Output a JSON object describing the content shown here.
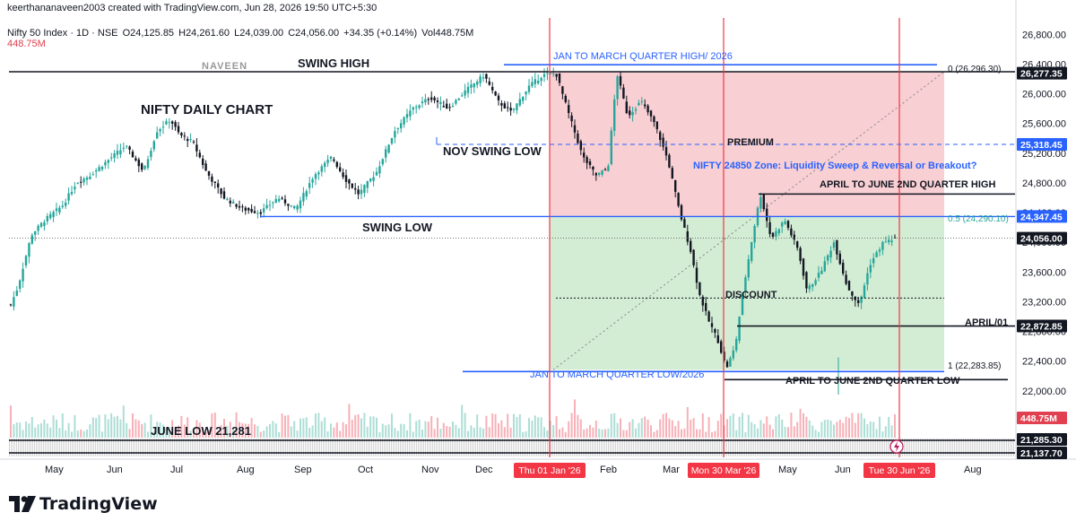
{
  "header": {
    "attribution": "keerthananaveen2003 created with TradingView.com, Jun 28, 2026 19:50 UTC+5:30",
    "symbol": "Nifty 50 Index · 1D · NSE",
    "open": "O24,125.85",
    "high": "H24,261.60",
    "low": "L24,039.00",
    "close": "C24,056.00",
    "change": "+34.35 (+0.14%)",
    "volume": "Vol448.75M",
    "volume_sub": "448.75M"
  },
  "brand": {
    "name": "TradingView"
  },
  "colors": {
    "up": "#26a69a",
    "down": "#131722",
    "premium_zone": "#f8cfd3",
    "discount_zone": "#d3ecd4",
    "blue_line": "#2962ff",
    "red_line": "#f23645",
    "label_blue": "#2962ff"
  },
  "chart_data": {
    "type": "candlestick",
    "title": "NIFTY DAILY CHART",
    "x_ticks": [
      "May",
      "Jun",
      "Jul",
      "Aug",
      "Sep",
      "Oct",
      "Nov",
      "Dec",
      "Feb",
      "Mar",
      "May",
      "Jun",
      "Aug"
    ],
    "x_date_badges": [
      "Thu 01 Jan '26",
      "Mon 30 Mar '26",
      "Tue 30 Jun '26"
    ],
    "y_ticks": [
      "26,800.00",
      "26,400.00",
      "26,000.00",
      "25,600.00",
      "25,200.00",
      "24,800.00",
      "24,400.00",
      "24,000.00",
      "23,600.00",
      "23,200.00",
      "22,800.00",
      "22,400.00",
      "22,000.00"
    ],
    "y_ticks_values": [
      26800,
      26400,
      26000,
      25600,
      25200,
      24800,
      24400,
      24000,
      23600,
      23200,
      22800,
      22400,
      22000
    ],
    "ylim": [
      21950,
      26900
    ],
    "price_badges": [
      {
        "label": "26,277.35",
        "value": 26277.35,
        "color": "#131722"
      },
      {
        "label": "25,318.45",
        "value": 25318.45,
        "color": "#2962ff"
      },
      {
        "label": "24,347.45",
        "value": 24347.45,
        "color": "#2962ff"
      },
      {
        "label": "24,056.00",
        "value": 24056.0,
        "color": "#131722"
      },
      {
        "label": "22,872.85",
        "value": 22872.85,
        "color": "#131722"
      },
      {
        "label": "448.75M",
        "value": 0,
        "color": "#e04050"
      },
      {
        "label": "21,285.30",
        "value": 0,
        "color": "#131722"
      },
      {
        "label": "21,137.70",
        "value": 0,
        "color": "#131722"
      }
    ],
    "key_levels": {
      "swing_high": 26296.3,
      "jan_mar_high": 26330,
      "nov_swing_low": 25318.45,
      "swing_low": 24347.45,
      "last_close": 24056.0,
      "april_01": 22872.85,
      "jan_mar_low": 22283.85,
      "apr_jun_high": 24650,
      "apr_jun_low": 22260,
      "discount_line": 23250
    },
    "fib": {
      "level_0": "0 (26,296.30)",
      "level_05": "0.5 (24,290.10)",
      "level_1": "1 (22,283.85)"
    },
    "annotations": {
      "naveen": "NAVEEN",
      "swing_high": "SWING HIGH",
      "nifty_daily": "NIFTY DAILY CHART",
      "nov_swing_low": "NOV SWING LOW",
      "swing_low": "SWING LOW",
      "premium": "PREMIUM",
      "discount": "DISCOUNT",
      "jan_mar_high": "JAN TO MARCH  QUARTER HIGH/ 2026",
      "jan_mar_low": "JAN TO MARCH  QUARTER LOW/2026",
      "headline": "NIFTY 24850 Zone: Liquidity Sweep & Reversal or Breakout?",
      "apr_jun_high": "APRIL TO JUNE 2ND QUARTER HIGH",
      "apr_jun_low": "APRIL TO JUNE 2ND QUARTER LOW",
      "april_01": "APRIL/01",
      "june_low": "JUNE LOW 21,281"
    },
    "series_waypoints": [
      [
        0,
        21950
      ],
      [
        10,
        23100
      ],
      [
        20,
        23400
      ],
      [
        35,
        24100
      ],
      [
        50,
        24300
      ],
      [
        70,
        24500
      ],
      [
        85,
        24800
      ],
      [
        100,
        24900
      ],
      [
        120,
        25100
      ],
      [
        140,
        25300
      ],
      [
        160,
        24950
      ],
      [
        175,
        25500
      ],
      [
        190,
        25650
      ],
      [
        200,
        25450
      ],
      [
        215,
        25350
      ],
      [
        230,
        24950
      ],
      [
        250,
        24600
      ],
      [
        270,
        24450
      ],
      [
        290,
        24400
      ],
      [
        310,
        24600
      ],
      [
        330,
        24450
      ],
      [
        350,
        24900
      ],
      [
        370,
        25150
      ],
      [
        385,
        24850
      ],
      [
        400,
        24650
      ],
      [
        420,
        24950
      ],
      [
        440,
        25500
      ],
      [
        460,
        25800
      ],
      [
        480,
        25950
      ],
      [
        500,
        25800
      ],
      [
        520,
        26050
      ],
      [
        540,
        26250
      ],
      [
        555,
        25900
      ],
      [
        570,
        25750
      ],
      [
        590,
        26100
      ],
      [
        605,
        26250
      ],
      [
        620,
        26277
      ],
      [
        635,
        25700
      ],
      [
        650,
        25150
      ],
      [
        665,
        24900
      ],
      [
        678,
        25000
      ],
      [
        688,
        26277
      ],
      [
        700,
        25700
      ],
      [
        715,
        25900
      ],
      [
        730,
        25600
      ],
      [
        745,
        25100
      ],
      [
        758,
        24400
      ],
      [
        770,
        23900
      ],
      [
        780,
        23300
      ],
      [
        790,
        22950
      ],
      [
        800,
        22700
      ],
      [
        810,
        22300
      ],
      [
        820,
        22600
      ],
      [
        828,
        23300
      ],
      [
        838,
        24000
      ],
      [
        848,
        24650
      ],
      [
        860,
        24050
      ],
      [
        875,
        24300
      ],
      [
        890,
        23900
      ],
      [
        900,
        23350
      ],
      [
        915,
        23600
      ],
      [
        930,
        24000
      ],
      [
        945,
        23400
      ],
      [
        958,
        23150
      ],
      [
        970,
        23700
      ],
      [
        985,
        24000
      ],
      [
        1000,
        24056
      ]
    ]
  }
}
